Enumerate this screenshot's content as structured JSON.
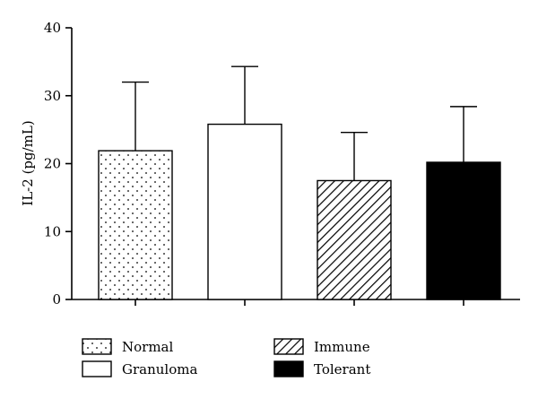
{
  "chart_data": {
    "type": "bar",
    "title": "",
    "xlabel": "",
    "ylabel": "IL-2 (pg/mL)",
    "ylim": [
      0,
      40
    ],
    "yticks": [
      0,
      10,
      20,
      30,
      40
    ],
    "grid": false,
    "legend_position": "bottom",
    "categories": [
      "Normal",
      "Granuloma",
      "Immune",
      "Tolerant"
    ],
    "values": [
      21.9,
      25.8,
      17.5,
      20.2
    ],
    "error_upper": [
      32.0,
      34.3,
      24.6,
      28.4
    ],
    "fills": [
      "dots",
      "white",
      "hatch",
      "black"
    ]
  }
}
